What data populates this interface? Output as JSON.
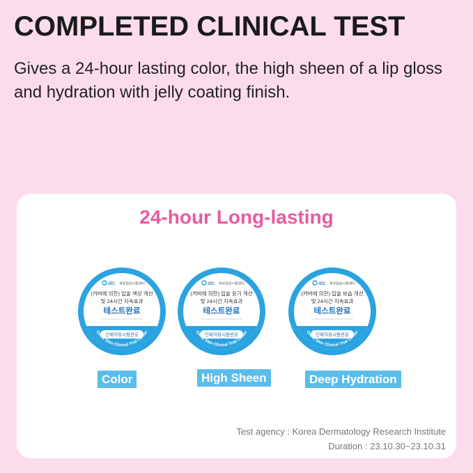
{
  "header": {
    "title": "COMPLETED CLINICAL TEST",
    "subtitle": "Gives a 24-hour lasting color, the high sheen of a lip gloss and hydration with jelly coating finish."
  },
  "card": {
    "title": "24-hour Long-lasting",
    "badges": [
      {
        "brand": "atc",
        "center": "피부임상시험센터",
        "line1": "(커버에 의한) 입술 색상 개선",
        "line2": "및 24시간 지속효과",
        "line3": "테스트완료",
        "pill": "인체적용시험완료",
        "arc": "OATC Skin Clinical Trial Center",
        "label": "Color"
      },
      {
        "brand": "atc",
        "center": "피부임상시험센터",
        "line1": "(커버에 의한) 입술 윤기 개선",
        "line2": "및 24시간 지속효과",
        "line3": "테스트완료",
        "pill": "인체적용시험완료",
        "arc": "OATC Skin Clinical Trial Center",
        "label": "High Sheen"
      },
      {
        "brand": "atc",
        "center": "피부임상시험센터",
        "line1": "(커버에 의한) 입술 보습 개선",
        "line2": "및 24시간 지속효과",
        "line3": "테스트완료",
        "pill": "인체적용시험완료",
        "arc": "OATC Skin Clinical Trial Center",
        "label": "Deep Hydration"
      }
    ],
    "agency": "Test agency : Korea Dermatology Research Institute",
    "duration": "Duration : 23.10.30~23.10.31"
  },
  "colors": {
    "background": "#fcdcec",
    "accent_pink": "#e95a9f",
    "badge_blue": "#2ba3e0",
    "label_blue": "#5bbdeb"
  }
}
